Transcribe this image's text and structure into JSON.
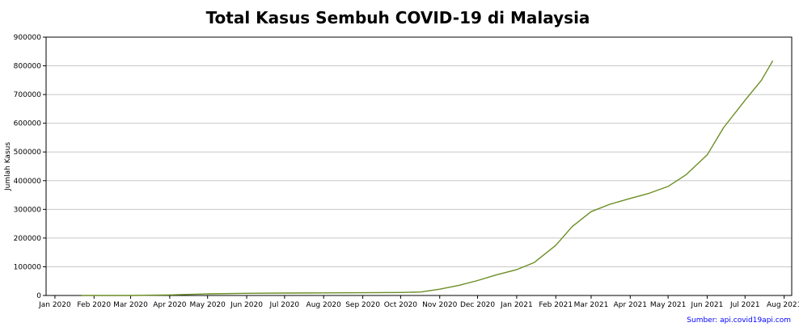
{
  "source_text": "Sumber: api.covid19api.com",
  "colors": {
    "line": "#6b8e23",
    "grid": "#c8c8c8",
    "source": "#0000ff",
    "axis": "#000000"
  },
  "chart_data": {
    "type": "line",
    "title": "Total Kasus Sembuh COVID-19 di Malaysia",
    "xlabel": "",
    "ylabel": "Jumlah Kasus",
    "ylim": [
      0,
      900000
    ],
    "xlim_days": [
      -7,
      584
    ],
    "yticks": [
      0,
      100000,
      200000,
      300000,
      400000,
      500000,
      600000,
      700000,
      800000,
      900000
    ],
    "xticks": [
      {
        "label": "Jan 2020",
        "day": 0
      },
      {
        "label": "Feb 2020",
        "day": 31
      },
      {
        "label": "Mar 2020",
        "day": 60
      },
      {
        "label": "Apr 2020",
        "day": 91
      },
      {
        "label": "May 2020",
        "day": 121
      },
      {
        "label": "Jun 2020",
        "day": 152
      },
      {
        "label": "Jul 2020",
        "day": 182
      },
      {
        "label": "Aug 2020",
        "day": 213
      },
      {
        "label": "Sep 2020",
        "day": 244
      },
      {
        "label": "Oct 2020",
        "day": 274
      },
      {
        "label": "Nov 2020",
        "day": 305
      },
      {
        "label": "Dec 2020",
        "day": 335
      },
      {
        "label": "Jan 2021",
        "day": 366
      },
      {
        "label": "Feb 2021",
        "day": 397
      },
      {
        "label": "Mar 2021",
        "day": 425
      },
      {
        "label": "Apr 2021",
        "day": 456
      },
      {
        "label": "May 2021",
        "day": 486
      },
      {
        "label": "Jun 2021",
        "day": 517
      },
      {
        "label": "Jul 2021",
        "day": 547
      },
      {
        "label": "Aug 2021",
        "day": 578
      }
    ],
    "series": [
      {
        "name": "Total Kasus Sembuh",
        "x": [
          21,
          60,
          91,
          121,
          152,
          182,
          213,
          244,
          274,
          290,
          305,
          320,
          335,
          350,
          366,
          380,
          397,
          410,
          425,
          440,
          456,
          471,
          486,
          500,
          517,
          530,
          547,
          560,
          569
        ],
        "y": [
          0,
          100,
          2000,
          5500,
          7500,
          8500,
          9000,
          9500,
          10500,
          12000,
          22000,
          35000,
          52000,
          72000,
          90000,
          115000,
          175000,
          240000,
          292000,
          318000,
          338000,
          356000,
          380000,
          420000,
          490000,
          585000,
          680000,
          750000,
          818000
        ]
      }
    ]
  }
}
